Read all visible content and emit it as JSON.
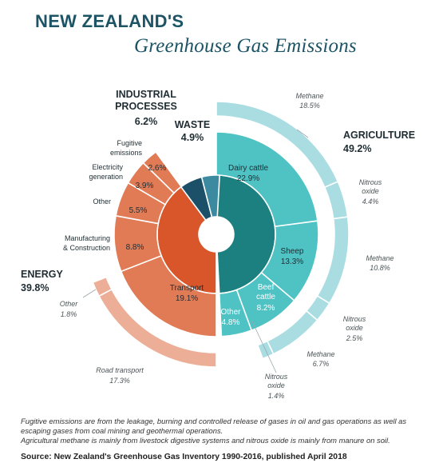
{
  "title_line1": "NEW ZEALAND'S",
  "title_line2": "Greenhouse Gas Emissions",
  "footnote1": "Fugitive emissions are from the leakage, burning and controlled release of gases in oil and gas operations as well as escaping gases from coal mining and geothermal operations.",
  "footnote2": "Agricultural methane is mainly from livestock digestive systems and nitrous oxide is mainly from manure on soil.",
  "source": "Source: New Zealand's Greenhouse Gas Inventory 1990-2016, published April 2018",
  "colors": {
    "energy_dark": "#d8562a",
    "energy_mid": "#e07b56",
    "energy_light": "#ecae96",
    "agri_dark": "#1c7f80",
    "agri_mid": "#4fc2c4",
    "agri_light": "#a9dde2",
    "industrial": "#1c4f68",
    "waste": "#3b8aa0",
    "title": "#1c5466"
  },
  "chart_data": {
    "type": "sunburst",
    "unit": "%",
    "sectors": [
      {
        "name": "AGRICULTURE",
        "percent": "49.2%",
        "value": 49.2,
        "subsectors": [
          {
            "name": "Dairy cattle",
            "percent": "22.9%",
            "value": 22.9,
            "gases": [
              {
                "name": "Methane",
                "percent": "18.5%",
                "value": 18.5
              },
              {
                "name": "Nitrous oxide",
                "percent": "4.4%",
                "value": 4.4
              }
            ]
          },
          {
            "name": "Sheep",
            "percent": "13.3%",
            "value": 13.3,
            "gases": [
              {
                "name": "Methane",
                "percent": "10.8%",
                "value": 10.8
              },
              {
                "name": "Nitrous oxide",
                "percent": "2.5%",
                "value": 2.5
              }
            ]
          },
          {
            "name": "Beef cattle",
            "percent": "8.2%",
            "value": 8.2,
            "gases": [
              {
                "name": "Methane",
                "percent": "6.7%",
                "value": 6.7
              },
              {
                "name": "Nitrous oxide",
                "percent": "1.4%",
                "value": 1.4
              }
            ]
          },
          {
            "name": "Other",
            "percent": "4.8%",
            "value": 4.8,
            "gases": []
          }
        ]
      },
      {
        "name": "ENERGY",
        "percent": "39.8%",
        "value": 39.8,
        "subsectors": [
          {
            "name": "Transport",
            "percent": "19.1%",
            "value": 19.1,
            "gases": [
              {
                "name": "Road transport",
                "percent": "17.3%",
                "value": 17.3
              },
              {
                "name": "Other",
                "percent": "1.8%",
                "value": 1.8
              }
            ]
          },
          {
            "name": "Manufacturing & Construction",
            "percent": "8.8%",
            "value": 8.8,
            "gases": []
          },
          {
            "name": "Other",
            "percent": "5.5%",
            "value": 5.5,
            "gases": []
          },
          {
            "name": "Electricity generation",
            "percent": "3.9%",
            "value": 3.9,
            "gases": []
          },
          {
            "name": "Fugitive emissions",
            "percent": "2.6%",
            "value": 2.6,
            "gases": []
          }
        ]
      },
      {
        "name": "INDUSTRIAL PROCESSES",
        "percent": "6.2%",
        "value": 6.2,
        "subsectors": []
      },
      {
        "name": "WASTE",
        "percent": "4.9%",
        "value": 4.9,
        "subsectors": []
      }
    ]
  }
}
